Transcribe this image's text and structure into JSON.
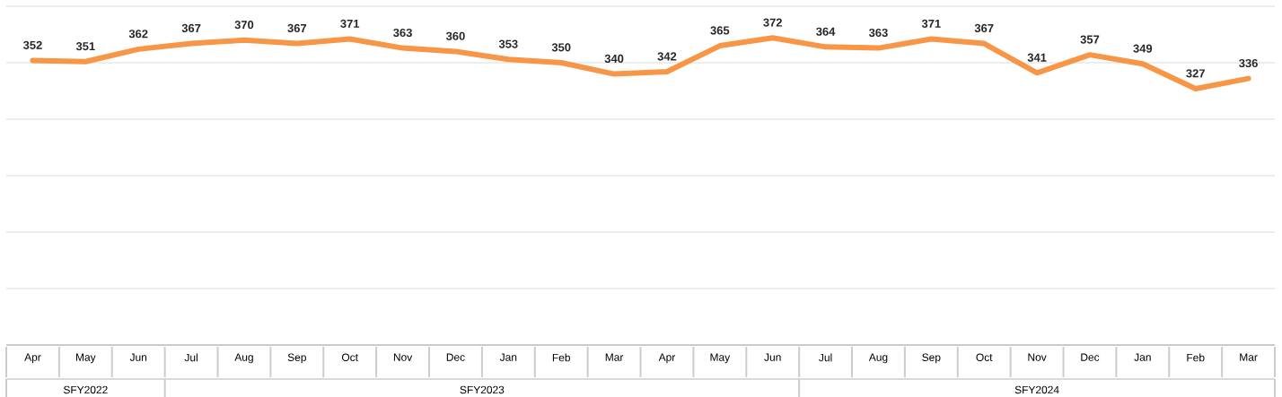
{
  "chart_data": {
    "type": "line",
    "categories": [
      "Apr",
      "May",
      "Jun",
      "Jul",
      "Aug",
      "Sep",
      "Oct",
      "Nov",
      "Dec",
      "Jan",
      "Feb",
      "Mar",
      "Apr",
      "May",
      "Jun",
      "Jul",
      "Aug",
      "Sep",
      "Oct",
      "Nov",
      "Dec",
      "Jan",
      "Feb",
      "Mar"
    ],
    "values": [
      352,
      351,
      362,
      367,
      370,
      367,
      371,
      363,
      360,
      353,
      350,
      340,
      342,
      365,
      372,
      364,
      363,
      371,
      367,
      341,
      357,
      349,
      327,
      336
    ],
    "color": "#f79646",
    "ylim": [
      100,
      400
    ],
    "yticks": [
      100,
      150,
      200,
      250,
      300,
      350,
      400
    ],
    "tick_labels": "x",
    "grid": "y",
    "data_labels": true,
    "marker": "none",
    "line_style": "solid",
    "annotations": [
      "SFY2022",
      "SFY2023",
      "SFY2024"
    ]
  }
}
